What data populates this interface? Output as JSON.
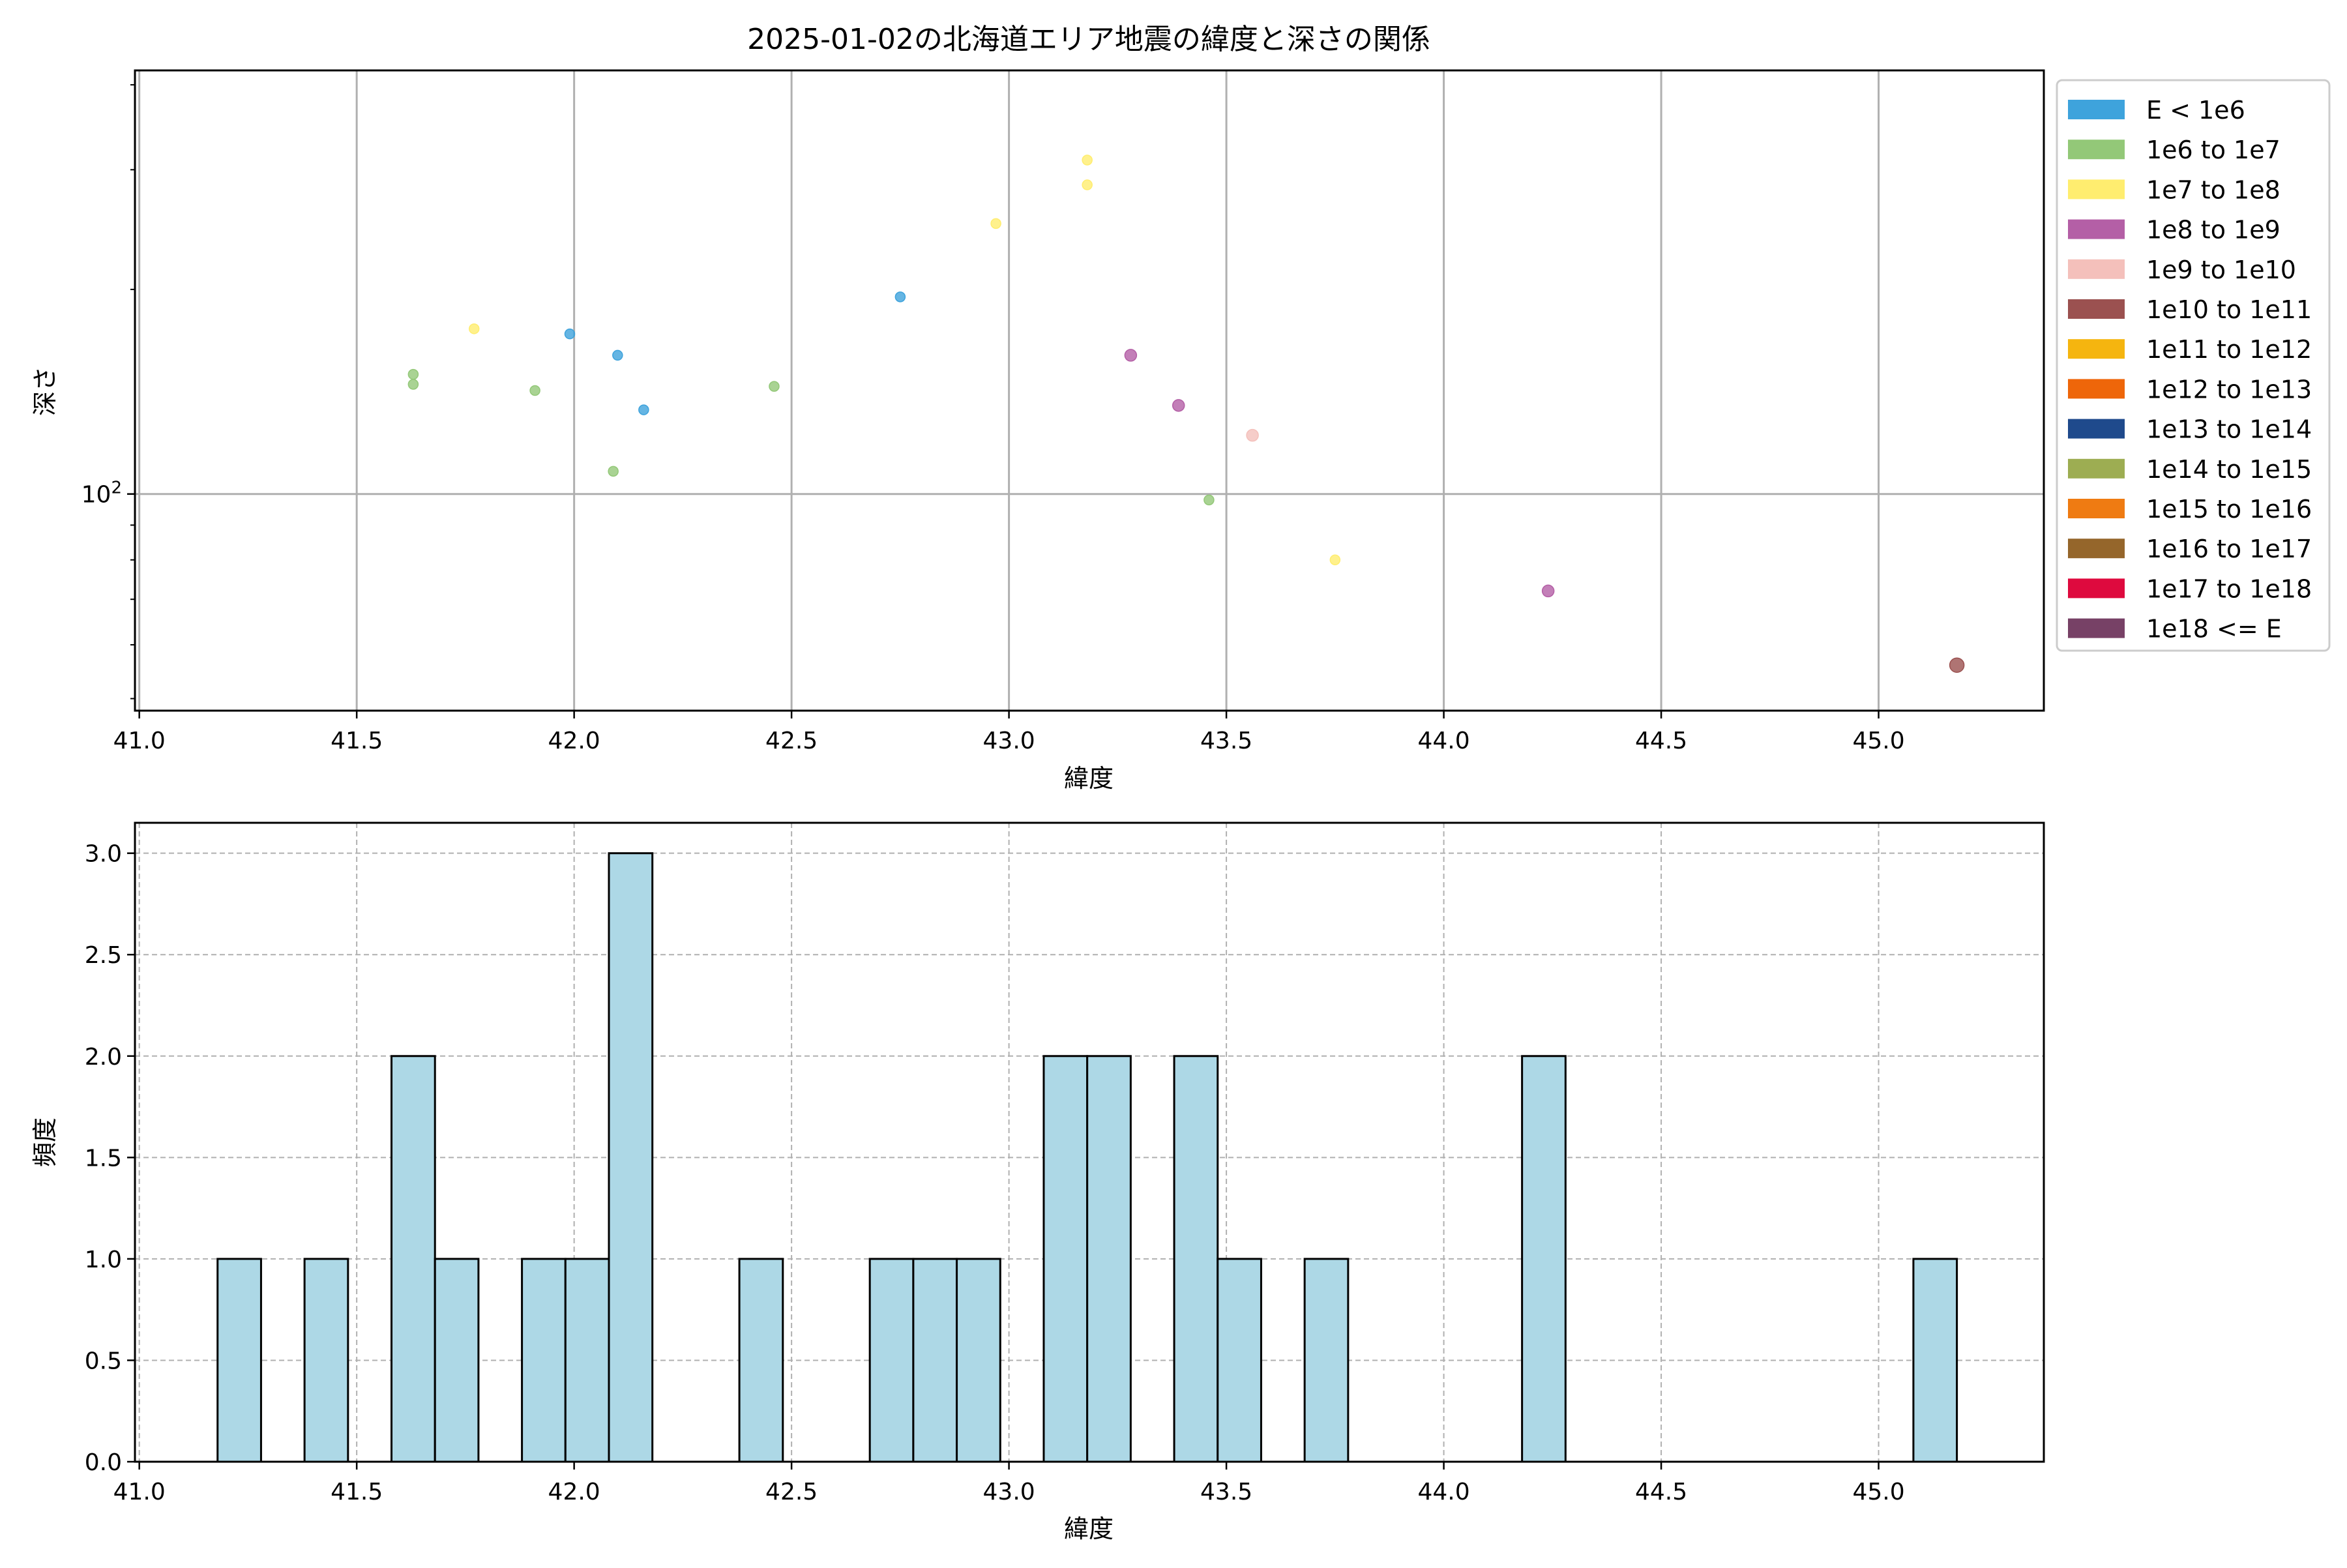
{
  "chart_data": [
    {
      "type": "scatter",
      "title": "2025-01-02の北海道エリア地震の緯度と深さの関係",
      "xlabel": "緯度",
      "ylabel": "深さ",
      "xlim": [
        40.99,
        45.38
      ],
      "ylim": [
        48,
        420
      ],
      "yscale": "log",
      "grid": true,
      "x_ticks": [
        "41.0",
        "41.5",
        "42.0",
        "42.5",
        "43.0",
        "43.5",
        "44.0",
        "44.5",
        "45.0"
      ],
      "y_ticks": [
        {
          "value": 100,
          "base": "10",
          "exp": "2"
        }
      ],
      "legend_position": "outside-right",
      "legend": [
        {
          "label": "E < 1e6",
          "color": "#3ea3dc"
        },
        {
          "label": "1e6 to 1e7",
          "color": "#93c878"
        },
        {
          "label": "1e7 to 1e8",
          "color": "#ffed6f"
        },
        {
          "label": "1e8 to 1e9",
          "color": "#b45fa6"
        },
        {
          "label": "1e9 to 1e10",
          "color": "#f4c0bb"
        },
        {
          "label": "1e10 to 1e11",
          "color": "#9b5150"
        },
        {
          "label": "1e11 to 1e12",
          "color": "#f5b50f"
        },
        {
          "label": "1e12 to 1e13",
          "color": "#ee660a"
        },
        {
          "label": "1e13 to 1e14",
          "color": "#1f4a8c"
        },
        {
          "label": "1e14 to 1e15",
          "color": "#9dad52"
        },
        {
          "label": "1e15 to 1e16",
          "color": "#ef7b12"
        },
        {
          "label": "1e16 to 1e17",
          "color": "#95662b"
        },
        {
          "label": "1e17 to 1e18",
          "color": "#de0a3e"
        },
        {
          "label": "1e18 <= E",
          "color": "#774166"
        }
      ],
      "points": [
        {
          "x": 41.63,
          "y": 150,
          "cat": 1
        },
        {
          "x": 41.63,
          "y": 145,
          "cat": 1
        },
        {
          "x": 41.77,
          "y": 175,
          "cat": 2
        },
        {
          "x": 41.91,
          "y": 142,
          "cat": 1
        },
        {
          "x": 41.99,
          "y": 172,
          "cat": 0
        },
        {
          "x": 42.09,
          "y": 108,
          "cat": 1
        },
        {
          "x": 42.1,
          "y": 160,
          "cat": 0
        },
        {
          "x": 42.16,
          "y": 133,
          "cat": 0
        },
        {
          "x": 42.46,
          "y": 144,
          "cat": 1
        },
        {
          "x": 42.75,
          "y": 195,
          "cat": 0
        },
        {
          "x": 42.97,
          "y": 250,
          "cat": 2
        },
        {
          "x": 43.18,
          "y": 310,
          "cat": 2
        },
        {
          "x": 43.18,
          "y": 285,
          "cat": 2
        },
        {
          "x": 43.28,
          "y": 160,
          "cat": 3
        },
        {
          "x": 43.39,
          "y": 135,
          "cat": 3
        },
        {
          "x": 43.46,
          "y": 98,
          "cat": 1
        },
        {
          "x": 43.56,
          "y": 122,
          "cat": 4
        },
        {
          "x": 43.75,
          "y": 80,
          "cat": 2
        },
        {
          "x": 44.24,
          "y": 72,
          "cat": 3
        },
        {
          "x": 45.18,
          "y": 56,
          "cat": 5
        }
      ]
    },
    {
      "type": "bar",
      "xlabel": "緯度",
      "ylabel": "頻度",
      "xlim": [
        40.99,
        45.38
      ],
      "ylim": [
        0,
        3.15
      ],
      "grid": true,
      "bar_color": "#add8e6",
      "bin_width": 0.1,
      "x_ticks": [
        "41.0",
        "41.5",
        "42.0",
        "42.5",
        "43.0",
        "43.5",
        "44.0",
        "44.5",
        "45.0"
      ],
      "y_ticks": [
        "0.0",
        "0.5",
        "1.0",
        "1.5",
        "2.0",
        "2.5",
        "3.0"
      ],
      "bins": [
        {
          "start": 41.18,
          "value": 1
        },
        {
          "start": 41.38,
          "value": 1
        },
        {
          "start": 41.58,
          "value": 2
        },
        {
          "start": 41.68,
          "value": 1
        },
        {
          "start": 41.88,
          "value": 1
        },
        {
          "start": 41.98,
          "value": 1
        },
        {
          "start": 42.08,
          "value": 3
        },
        {
          "start": 42.38,
          "value": 1
        },
        {
          "start": 42.68,
          "value": 1
        },
        {
          "start": 42.78,
          "value": 1
        },
        {
          "start": 42.88,
          "value": 1
        },
        {
          "start": 43.08,
          "value": 2
        },
        {
          "start": 43.18,
          "value": 2
        },
        {
          "start": 43.38,
          "value": 2
        },
        {
          "start": 43.48,
          "value": 1
        },
        {
          "start": 43.68,
          "value": 1
        },
        {
          "start": 44.18,
          "value": 2
        },
        {
          "start": 45.08,
          "value": 1
        }
      ]
    }
  ]
}
